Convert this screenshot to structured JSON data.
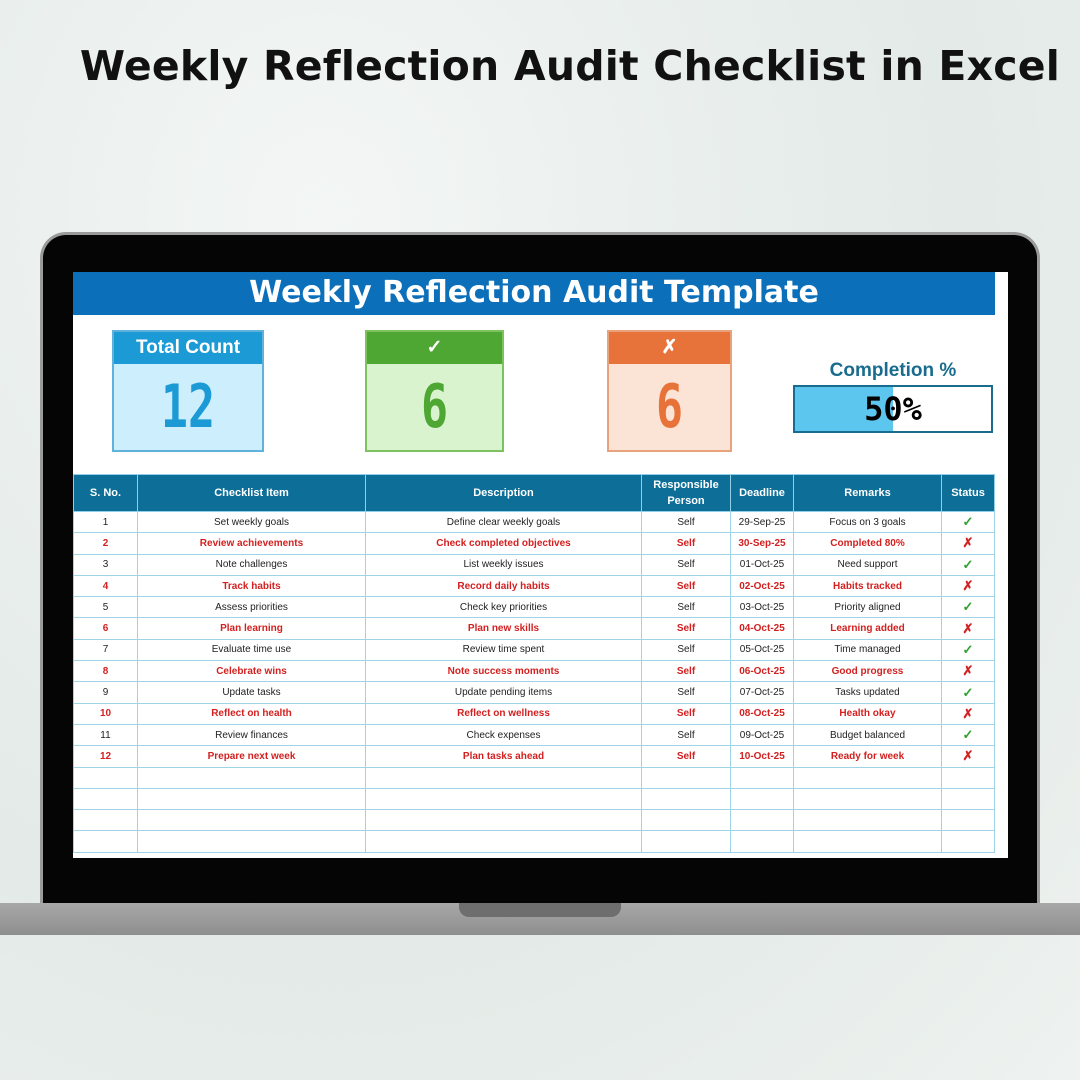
{
  "page_title": "Weekly Reflection Audit Checklist in Excel",
  "sheet": {
    "banner": "Weekly Reflection Audit Template",
    "cards": [
      {
        "label": "Total Count",
        "value": "12",
        "color": "#1b9ad6"
      },
      {
        "label": "✓",
        "value": "6",
        "color": "#4ea633"
      },
      {
        "label": "✗",
        "value": "6",
        "color": "#e8733a"
      }
    ],
    "completion": {
      "label": "Completion %",
      "text": "50%",
      "percent": 50
    },
    "columns": [
      "S. No.",
      "Checklist Item",
      "Description",
      "Responsible Person",
      "Deadline",
      "Remarks",
      "Status"
    ],
    "rows": [
      [
        "1",
        "Set weekly goals",
        "Define clear weekly goals",
        "Self",
        "29-Sep-25",
        "Focus on 3 goals",
        "✓"
      ],
      [
        "2",
        "Review achievements",
        "Check completed objectives",
        "Self",
        "30-Sep-25",
        "Completed 80%",
        "✗"
      ],
      [
        "3",
        "Note challenges",
        "List weekly issues",
        "Self",
        "01-Oct-25",
        "Need support",
        "✓"
      ],
      [
        "4",
        "Track habits",
        "Record daily habits",
        "Self",
        "02-Oct-25",
        "Habits tracked",
        "✗"
      ],
      [
        "5",
        "Assess priorities",
        "Check key priorities",
        "Self",
        "03-Oct-25",
        "Priority aligned",
        "✓"
      ],
      [
        "6",
        "Plan learning",
        "Plan new skills",
        "Self",
        "04-Oct-25",
        "Learning added",
        "✗"
      ],
      [
        "7",
        "Evaluate time use",
        "Review time spent",
        "Self",
        "05-Oct-25",
        "Time managed",
        "✓"
      ],
      [
        "8",
        "Celebrate wins",
        "Note success moments",
        "Self",
        "06-Oct-25",
        "Good progress",
        "✗"
      ],
      [
        "9",
        "Update tasks",
        "Update pending items",
        "Self",
        "07-Oct-25",
        "Tasks updated",
        "✓"
      ],
      [
        "10",
        "Reflect on health",
        "Reflect on wellness",
        "Self",
        "08-Oct-25",
        "Health okay",
        "✗"
      ],
      [
        "11",
        "Review finances",
        "Check expenses",
        "Self",
        "09-Oct-25",
        "Budget balanced",
        "✓"
      ],
      [
        "12",
        "Prepare next week",
        "Plan tasks ahead",
        "Self",
        "10-Oct-25",
        "Ready for week",
        "✗"
      ]
    ],
    "empty_rows": 4,
    "colors": {
      "check": "#2fa12f",
      "cross": "#d32020",
      "header": "#0d6f98",
      "banner": "#0b6fba"
    }
  }
}
